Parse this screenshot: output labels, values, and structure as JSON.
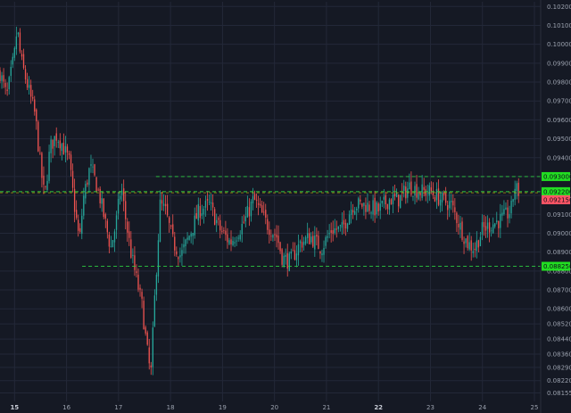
{
  "colors": {
    "background": "#151924",
    "grid": "#232838",
    "up": "#26a69a",
    "down": "#ef5350",
    "level_line": "#2ecc40",
    "current_line": "#d4b106",
    "badge_green": "#22dd22",
    "badge_red": "#ff5566",
    "axis_text": "#9aa0ad"
  },
  "chart_data": {
    "type": "candlestick",
    "x_ticks": [
      "15",
      "16",
      "17",
      "18",
      "19",
      "20",
      "21",
      "22",
      "23",
      "24",
      "25"
    ],
    "x_ticks_bold": [
      "15",
      "22"
    ],
    "xlim": [
      14.72,
      25.12
    ],
    "ylim": [
      0.0811,
      0.10225
    ],
    "y_ticks": [
      "0.102000",
      "0.101000",
      "0.100000",
      "0.099000",
      "0.098000",
      "0.097000",
      "0.096000",
      "0.095000",
      "0.094000",
      "0.093000",
      "0.092000",
      "0.091000",
      "0.090000",
      "0.089000",
      "0.088000",
      "0.087000",
      "0.086000",
      "0.085200",
      "0.084400",
      "0.083600",
      "0.082900",
      "0.082200",
      "0.081550"
    ],
    "y_tick_values": [
      0.102,
      0.101,
      0.1,
      0.099,
      0.098,
      0.097,
      0.096,
      0.095,
      0.094,
      0.093,
      0.092,
      0.091,
      0.09,
      0.089,
      0.088,
      0.087,
      0.086,
      0.0852,
      0.0844,
      0.0836,
      0.0829,
      0.0822,
      0.08155
    ],
    "levels": [
      {
        "label": "0.093000",
        "value": 0.093,
        "style": "dashed",
        "color": "green",
        "x_start": 17.72
      },
      {
        "label": "0.092200",
        "value": 0.0922,
        "style": "dashed",
        "color": "green-current",
        "x_start": 14.72
      },
      {
        "label": "0.088250",
        "value": 0.08825,
        "style": "dashed",
        "color": "green",
        "x_start": 16.3
      }
    ],
    "badges": [
      {
        "label": "0.093000",
        "value": 0.093,
        "color": "green"
      },
      {
        "label": "0.092200",
        "value": 0.0922,
        "color": "green"
      },
      {
        "label": "0.092150",
        "value": 0.09215,
        "color": "red"
      },
      {
        "label": "0.088250",
        "value": 0.08825,
        "color": "green"
      }
    ],
    "path": [
      [
        14.72,
        0.0985
      ],
      [
        14.85,
        0.0972
      ],
      [
        15.0,
        0.0995
      ],
      [
        15.05,
        0.1009
      ],
      [
        15.12,
        0.0992
      ],
      [
        15.25,
        0.0978
      ],
      [
        15.4,
        0.0962
      ],
      [
        15.5,
        0.0935
      ],
      [
        15.58,
        0.0918
      ],
      [
        15.68,
        0.0945
      ],
      [
        15.8,
        0.0952
      ],
      [
        15.9,
        0.0948
      ],
      [
        16.05,
        0.0938
      ],
      [
        16.15,
        0.0915
      ],
      [
        16.25,
        0.0895
      ],
      [
        16.32,
        0.0918
      ],
      [
        16.45,
        0.0935
      ],
      [
        16.55,
        0.0928
      ],
      [
        16.65,
        0.0918
      ],
      [
        16.75,
        0.0905
      ],
      [
        16.85,
        0.0892
      ],
      [
        16.95,
        0.0905
      ],
      [
        17.05,
        0.0925
      ],
      [
        17.15,
        0.0905
      ],
      [
        17.25,
        0.0888
      ],
      [
        17.35,
        0.0875
      ],
      [
        17.45,
        0.0862
      ],
      [
        17.55,
        0.0838
      ],
      [
        17.62,
        0.0824
      ],
      [
        17.7,
        0.0868
      ],
      [
        17.8,
        0.0915
      ],
      [
        17.9,
        0.0912
      ],
      [
        18.05,
        0.0895
      ],
      [
        18.2,
        0.0888
      ],
      [
        18.35,
        0.0898
      ],
      [
        18.55,
        0.0912
      ],
      [
        18.75,
        0.0915
      ],
      [
        18.95,
        0.0902
      ],
      [
        19.15,
        0.0895
      ],
      [
        19.4,
        0.0905
      ],
      [
        19.6,
        0.0918
      ],
      [
        19.85,
        0.0905
      ],
      [
        20.05,
        0.0898
      ],
      [
        20.15,
        0.0887
      ],
      [
        20.3,
        0.0885
      ],
      [
        20.5,
        0.0895
      ],
      [
        20.7,
        0.0898
      ],
      [
        20.9,
        0.0892
      ],
      [
        21.1,
        0.0902
      ],
      [
        21.3,
        0.0902
      ],
      [
        21.5,
        0.0915
      ],
      [
        21.75,
        0.0915
      ],
      [
        22.0,
        0.0912
      ],
      [
        22.2,
        0.0918
      ],
      [
        22.4,
        0.0918
      ],
      [
        22.6,
        0.0925
      ],
      [
        22.8,
        0.0922
      ],
      [
        23.0,
        0.0922
      ],
      [
        23.2,
        0.0918
      ],
      [
        23.4,
        0.0915
      ],
      [
        23.55,
        0.0905
      ],
      [
        23.7,
        0.0895
      ],
      [
        23.85,
        0.0892
      ],
      [
        24.0,
        0.0902
      ],
      [
        24.2,
        0.0905
      ],
      [
        24.4,
        0.0908
      ],
      [
        24.55,
        0.0912
      ],
      [
        24.62,
        0.0925
      ],
      [
        24.68,
        0.0922
      ],
      [
        24.72,
        0.09215
      ]
    ],
    "candle_step": 0.035,
    "seed": 7
  }
}
